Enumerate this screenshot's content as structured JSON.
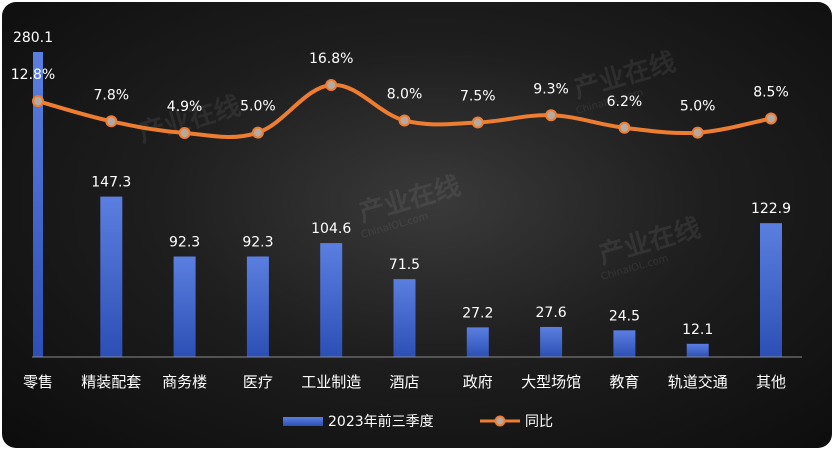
{
  "chart_data": {
    "type": "bar+line",
    "categories": [
      "零售",
      "精装配套",
      "商务楼",
      "医疗",
      "工业制造",
      "酒店",
      "政府",
      "大型场馆",
      "教育",
      "轨道交通",
      "其他"
    ],
    "series": [
      {
        "name": "2023年前三季度",
        "type": "bar",
        "values": [
          280.1,
          147.3,
          92.3,
          92.3,
          104.6,
          71.5,
          27.2,
          27.6,
          24.5,
          12.1,
          122.9
        ],
        "labels": [
          "280.1",
          "147.3",
          "92.3",
          "92.3",
          "104.6",
          "71.5",
          "27.2",
          "27.6",
          "24.5",
          "12.1",
          "122.9"
        ]
      },
      {
        "name": "同比",
        "type": "line",
        "values": [
          12.8,
          7.8,
          4.9,
          5.0,
          16.8,
          8.0,
          7.5,
          9.3,
          6.2,
          5.0,
          8.5
        ],
        "labels": [
          "12.8%",
          "7.8%",
          "4.9%",
          "5.0%",
          "16.8%",
          "8.0%",
          "7.5%",
          "9.3%",
          "6.2%",
          "5.0%",
          "8.5%"
        ]
      }
    ],
    "legend_position": "bottom",
    "grid": false,
    "colors": {
      "bar_top": "#5b7fe0",
      "bar_bottom": "#2c4fb5",
      "line": "#ed7d31",
      "marker": "#b8a9a0"
    }
  },
  "watermark": {
    "text": "产业在线",
    "sub": "ChinaIOL.com"
  }
}
